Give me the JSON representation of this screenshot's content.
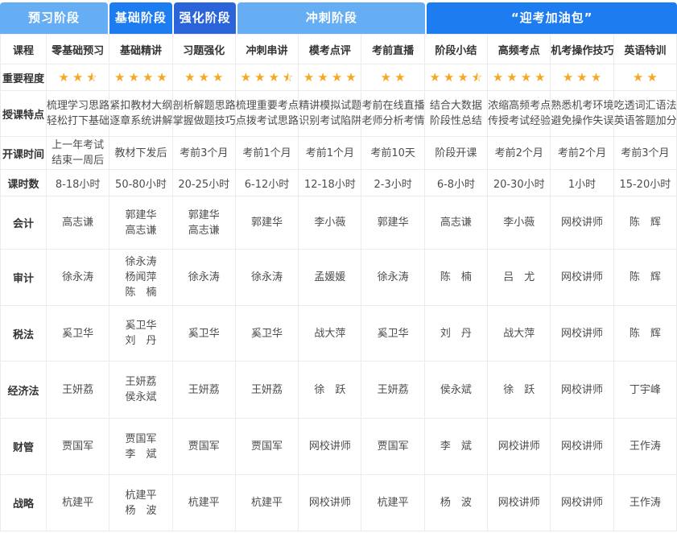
{
  "colors": {
    "light_blue": "#66AEF3",
    "bright_blue": "#1C7CF0",
    "dark_blue": "#2B63D9",
    "star_orange": "#F7A823",
    "header_text": "#FFFFFF",
    "grid_line": "#EBEBEB"
  },
  "phase_header": [
    {
      "id": "preview",
      "label": "预习阶段",
      "columns_spanned": 1,
      "includes_course_label_column": true,
      "color": "#66AEF3"
    },
    {
      "id": "basic",
      "label": "基础阶段",
      "columns_spanned": 1,
      "includes_course_label_column": false,
      "color": "#1C7CF0"
    },
    {
      "id": "intensive",
      "label": "强化阶段",
      "columns_spanned": 1,
      "includes_course_label_column": false,
      "color": "#2B63D9"
    },
    {
      "id": "sprint",
      "label": "冲刺阶段",
      "columns_spanned": 3,
      "includes_course_label_column": false,
      "color": "#66AEF3"
    },
    {
      "id": "exam-gift-pack",
      "label": "“迎考加油包”",
      "columns_spanned": 4,
      "includes_course_label_column": false,
      "color": "#1C7CF0"
    }
  ],
  "course_row": {
    "label": "课程",
    "columns": [
      "零基础预习",
      "基础精讲",
      "习题强化",
      "冲刺串讲",
      "模考点评",
      "考前直播",
      "阶段小结",
      "高频考点",
      "机考操作技巧",
      "英语特训"
    ]
  },
  "importance_row": {
    "label": "重要程度",
    "ratings": [
      2.5,
      4,
      3,
      3.5,
      4,
      2,
      3.5,
      4,
      3,
      2
    ]
  },
  "feature_row": {
    "label": "授课特点",
    "cells": [
      [
        "梳理学习思路",
        "轻松打下基础"
      ],
      [
        "紧扣教材大纲",
        "逐章系统讲解"
      ],
      [
        "剖析解题思路",
        "掌握做题技巧"
      ],
      [
        "梳理重要考点",
        "点拨考试思路"
      ],
      [
        "精讲模拟试题",
        "识别考试陷阱"
      ],
      [
        "考前在线直播",
        "老师分析考情"
      ],
      [
        "结合大数据",
        "阶段性总结"
      ],
      [
        "浓缩高频考点",
        "传授考试经验"
      ],
      [
        "熟悉机考环境",
        "避免操作失误"
      ],
      [
        "吃透词汇语法",
        "英语答题加分"
      ]
    ]
  },
  "start_time_row": {
    "label": "开课时间",
    "cells": [
      [
        "上一年考试",
        "结束一周后"
      ],
      [
        "教材下发后"
      ],
      [
        "考前3个月"
      ],
      [
        "考前1个月"
      ],
      [
        "考前1个月"
      ],
      [
        "考前10天"
      ],
      [
        "阶段开课"
      ],
      [
        "考前2个月"
      ],
      [
        "考前2个月"
      ],
      [
        "考前3个月"
      ]
    ]
  },
  "hours_row": {
    "label": "课时数",
    "cells": [
      "8-18小时",
      "50-80小时",
      "20-25小时",
      "6-12小时",
      "12-18小时",
      "2-3小时",
      "6-8小时",
      "20-30小时",
      "1小时",
      "15-20小时"
    ]
  },
  "subject_rows": [
    {
      "label": "会计",
      "cells": [
        [
          "高志谦"
        ],
        [
          "郭建华",
          "高志谦"
        ],
        [
          "郭建华",
          "高志谦"
        ],
        [
          "郭建华"
        ],
        [
          "李小薇"
        ],
        [
          "郭建华"
        ],
        [
          "高志谦"
        ],
        [
          "李小薇"
        ],
        [
          "网校讲师"
        ],
        [
          "陈　辉"
        ]
      ]
    },
    {
      "label": "审计",
      "cells": [
        [
          "徐永涛"
        ],
        [
          "徐永涛",
          "杨闻萍",
          "陈　楠"
        ],
        [
          "徐永涛"
        ],
        [
          "徐永涛"
        ],
        [
          "孟媛媛"
        ],
        [
          "徐永涛"
        ],
        [
          "陈　楠"
        ],
        [
          "吕　尤"
        ],
        [
          "网校讲师"
        ],
        [
          "陈　辉"
        ]
      ]
    },
    {
      "label": "税法",
      "cells": [
        [
          "奚卫华"
        ],
        [
          "奚卫华",
          "刘　丹"
        ],
        [
          "奚卫华"
        ],
        [
          "奚卫华"
        ],
        [
          "战大萍"
        ],
        [
          "奚卫华"
        ],
        [
          "刘　丹"
        ],
        [
          "战大萍"
        ],
        [
          "网校讲师"
        ],
        [
          "陈　辉"
        ]
      ]
    },
    {
      "label": "经济法",
      "cells": [
        [
          "王妍荔"
        ],
        [
          "王妍荔",
          "侯永斌"
        ],
        [
          "王妍荔"
        ],
        [
          "王妍荔"
        ],
        [
          "徐　跃"
        ],
        [
          "王妍荔"
        ],
        [
          "侯永斌"
        ],
        [
          "徐　跃"
        ],
        [
          "网校讲师"
        ],
        [
          "丁宇峰"
        ]
      ]
    },
    {
      "label": "财管",
      "cells": [
        [
          "贾国军"
        ],
        [
          "贾国军",
          "李　斌"
        ],
        [
          "贾国军"
        ],
        [
          "贾国军"
        ],
        [
          "网校讲师"
        ],
        [
          "贾国军"
        ],
        [
          "李　斌"
        ],
        [
          "网校讲师"
        ],
        [
          "网校讲师"
        ],
        [
          "王作涛"
        ]
      ]
    },
    {
      "label": "战略",
      "cells": [
        [
          "杭建平"
        ],
        [
          "杭建平",
          "杨　波"
        ],
        [
          "杭建平"
        ],
        [
          "杭建平"
        ],
        [
          "网校讲师"
        ],
        [
          "杭建平"
        ],
        [
          "杨　波"
        ],
        [
          "网校讲师"
        ],
        [
          "网校讲师"
        ],
        [
          "王作涛"
        ]
      ]
    }
  ]
}
